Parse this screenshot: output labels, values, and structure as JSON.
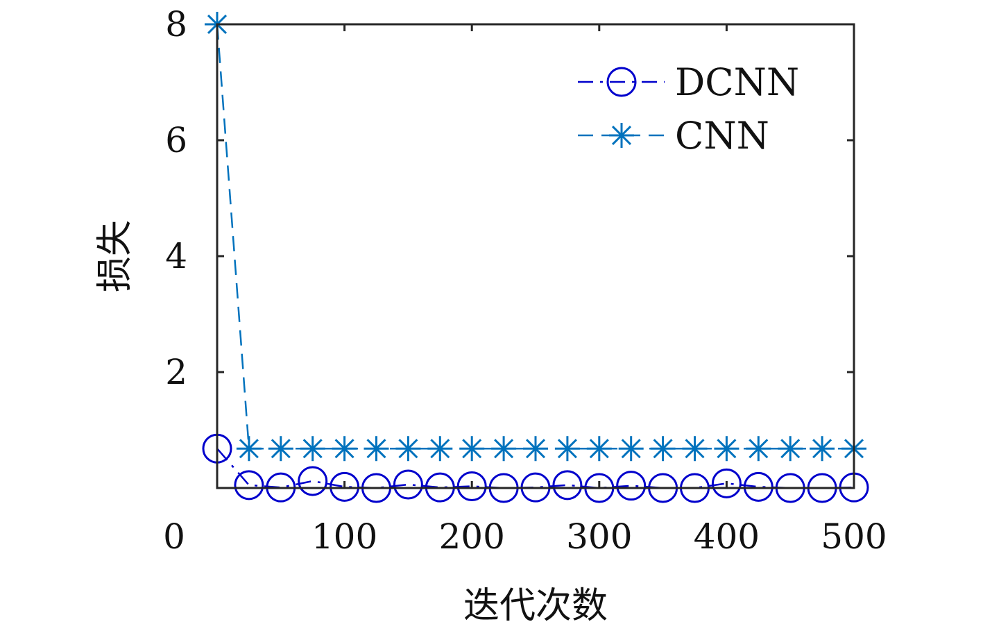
{
  "chart_data": {
    "type": "line",
    "xlabel": "迭代次数",
    "ylabel": "损失",
    "xlim": [
      0,
      500
    ],
    "ylim": [
      0,
      8
    ],
    "xticks": [
      0,
      100,
      200,
      300,
      400,
      500
    ],
    "xtick_labels": [
      "0",
      "100",
      "200",
      "300",
      "400",
      "500"
    ],
    "yticks": [
      2,
      4,
      6,
      8
    ],
    "ytick_labels": [
      "2",
      "4",
      "6",
      "8"
    ],
    "grid": false,
    "legend_position": "top-right",
    "x": [
      0,
      25,
      50,
      75,
      100,
      125,
      150,
      175,
      200,
      225,
      250,
      275,
      300,
      325,
      350,
      375,
      400,
      425,
      450,
      475,
      500
    ],
    "series": [
      {
        "name": "DCNN",
        "color": "#0000cc",
        "marker": "circle",
        "line_style": "dash-dot",
        "values": [
          0.68,
          0.05,
          0.01,
          0.12,
          0.02,
          0.0,
          0.06,
          0.01,
          0.03,
          0.0,
          0.01,
          0.05,
          0.0,
          0.04,
          0.0,
          0.0,
          0.08,
          0.02,
          0.0,
          0.0,
          0.01
        ]
      },
      {
        "name": "CNN",
        "color": "#0072bd",
        "marker": "asterisk",
        "line_style": "dashed",
        "values": [
          8.0,
          0.68,
          0.68,
          0.68,
          0.68,
          0.68,
          0.68,
          0.68,
          0.68,
          0.68,
          0.68,
          0.68,
          0.68,
          0.68,
          0.68,
          0.68,
          0.68,
          0.68,
          0.68,
          0.68,
          0.68
        ]
      }
    ]
  }
}
